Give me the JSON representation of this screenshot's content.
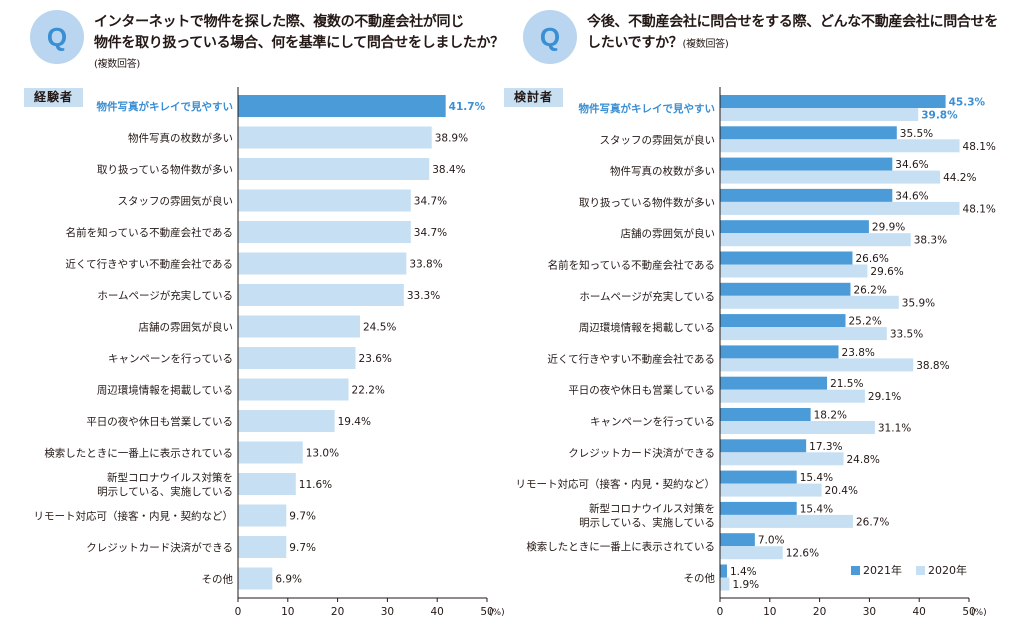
{
  "colors": {
    "bar_2021": "#4a9bd8",
    "bar_light": "#c7dff2",
    "highlight_text": "#3a8fd4",
    "axis": "#231815"
  },
  "left": {
    "q_badge": "Q",
    "question_line1": "インターネットで物件を探した際、複数の不動産会社が同じ",
    "question_line2": "物件を取り扱っている場合、何を基準にして問合せをしましたか？",
    "question_note": "(複数回答)",
    "group_label": "経験者"
  },
  "right": {
    "q_badge": "Q",
    "question_line1": "今後、不動産会社に問合せをする際、どんな不動産会社に問合せを",
    "question_line2": "したいですか？",
    "question_note": "(複数回答)",
    "group_label": "検討者",
    "legend_2021": "2021年",
    "legend_2020": "2020年"
  },
  "chart_data": [
    {
      "type": "bar",
      "orientation": "horizontal",
      "title": "インターネットで物件を探した際、複数の不動産会社が同じ物件を取り扱っている場合、何を基準にして問合せをしましたか？",
      "group": "経験者",
      "categories": [
        [
          "物件写真がキレイで見やすい"
        ],
        [
          "物件写真の枚数が多い"
        ],
        [
          "取り扱っている物件数が多い"
        ],
        [
          "スタッフの雰囲気が良い"
        ],
        [
          "名前を知っている不動産会社である"
        ],
        [
          "近くて行きやすい不動産会社である"
        ],
        [
          "ホームページが充実している"
        ],
        [
          "店舗の雰囲気が良い"
        ],
        [
          "キャンペーンを行っている"
        ],
        [
          "周辺環境情報を掲載している"
        ],
        [
          "平日の夜や休日も営業している"
        ],
        [
          "検索したときに一番上に表示されている"
        ],
        [
          "新型コロナウイルス対策を",
          "明示している、実施している"
        ],
        [
          "リモート対応可（接客・内見・契約など）"
        ],
        [
          "クレジットカード決済ができる"
        ],
        [
          "その他"
        ]
      ],
      "series": [
        {
          "name": "経験者",
          "values": [
            41.7,
            38.9,
            38.4,
            34.7,
            34.7,
            33.8,
            33.3,
            24.5,
            23.6,
            22.2,
            19.4,
            13.0,
            11.6,
            9.7,
            9.7,
            6.9
          ],
          "labels": [
            "41.7%",
            "38.9%",
            "38.4%",
            "34.7%",
            "34.7%",
            "33.8%",
            "33.3%",
            "24.5%",
            "23.6%",
            "22.2%",
            "19.4%",
            "13.0%",
            "11.6%",
            "9.7%",
            "9.7%",
            "6.9%"
          ]
        }
      ],
      "highlight_index": 0,
      "xlim": [
        0,
        50
      ],
      "xticks": [
        "0",
        "10",
        "20",
        "30",
        "40",
        "50"
      ],
      "unit": "(%)"
    },
    {
      "type": "bar",
      "orientation": "horizontal",
      "title": "今後、不動産会社に問合せをする際、どんな不動産会社に問合せをしたいですか？",
      "group": "検討者",
      "categories": [
        [
          "物件写真がキレイで見やすい"
        ],
        [
          "スタッフの雰囲気が良い"
        ],
        [
          "物件写真の枚数が多い"
        ],
        [
          "取り扱っている物件数が多い"
        ],
        [
          "店舗の雰囲気が良い"
        ],
        [
          "名前を知っている不動産会社である"
        ],
        [
          "ホームページが充実している"
        ],
        [
          "周辺環境情報を掲載している"
        ],
        [
          "近くて行きやすい不動産会社である"
        ],
        [
          "平日の夜や休日も営業している"
        ],
        [
          "キャンペーンを行っている"
        ],
        [
          "クレジットカード決済ができる"
        ],
        [
          "リモート対応可（接客・内見・契約など）"
        ],
        [
          "新型コロナウイルス対策を",
          "明示している、実施している"
        ],
        [
          "検索したときに一番上に表示されている"
        ],
        [
          "その他"
        ]
      ],
      "series": [
        {
          "name": "2021年",
          "values": [
            45.3,
            35.5,
            34.6,
            34.6,
            29.9,
            26.6,
            26.2,
            25.2,
            23.8,
            21.5,
            18.2,
            17.3,
            15.4,
            15.4,
            7.0,
            1.4
          ],
          "labels": [
            "45.3%",
            "35.5%",
            "34.6%",
            "34.6%",
            "29.9%",
            "26.6%",
            "26.2%",
            "25.2%",
            "23.8%",
            "21.5%",
            "18.2%",
            "17.3%",
            "15.4%",
            "15.4%",
            "7.0%",
            "1.4%"
          ]
        },
        {
          "name": "2020年",
          "values": [
            39.8,
            48.1,
            44.2,
            48.1,
            38.3,
            29.6,
            35.9,
            33.5,
            38.8,
            29.1,
            31.1,
            24.8,
            20.4,
            26.7,
            12.6,
            1.9
          ],
          "labels": [
            "39.8%",
            "48.1%",
            "44.2%",
            "48.1%",
            "38.3%",
            "29.6%",
            "35.9%",
            "33.5%",
            "38.8%",
            "29.1%",
            "31.1%",
            "24.8%",
            "20.4%",
            "26.7%",
            "12.6%",
            "1.9%"
          ]
        }
      ],
      "highlight_index": 0,
      "legend": "bottom-right",
      "xlim": [
        0,
        50
      ],
      "xticks": [
        "0",
        "10",
        "20",
        "30",
        "40",
        "50"
      ],
      "unit": "(%)"
    }
  ]
}
